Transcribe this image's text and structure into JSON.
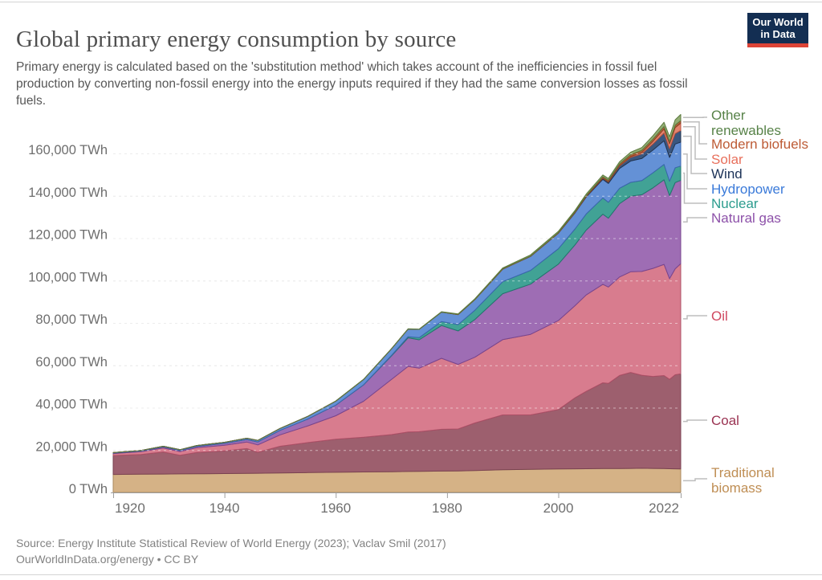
{
  "header": {
    "title": "Global primary energy consumption by source",
    "subtitle": "Primary energy is calculated based on the 'substitution method' which takes account of the inefficiencies in fossil fuel production by converting non-fossil energy into the energy inputs required if they had the same conversion losses as fossil fuels.",
    "logo": {
      "line1": "Our World",
      "line2": "in Data",
      "bg_color": "#132e52",
      "bar_color": "#dc4437"
    }
  },
  "footer": {
    "source": "Source: Energy Institute Statistical Review of World Energy (2023); Vaclav Smil (2017)",
    "license": "OurWorldInData.org/energy • CC BY"
  },
  "chart_data": {
    "type": "area",
    "stacked": true,
    "title": "Global primary energy consumption by source",
    "unit": "TWh",
    "xlim": [
      1920,
      2022
    ],
    "ylim": [
      0,
      181000
    ],
    "grid": "dashed-horizontal",
    "legend_position": "right",
    "x_ticks": [
      1920,
      1940,
      1960,
      1980,
      2000,
      2022
    ],
    "y_ticks": [
      0,
      20000,
      40000,
      60000,
      80000,
      100000,
      120000,
      140000,
      160000
    ],
    "y_tick_suffix": " TWh",
    "x": [
      1920,
      1925,
      1929,
      1932,
      1935,
      1940,
      1944,
      1946,
      1950,
      1955,
      1960,
      1965,
      1970,
      1973,
      1975,
      1979,
      1982,
      1985,
      1990,
      1995,
      2000,
      2003,
      2005,
      2008,
      2009,
      2011,
      2013,
      2015,
      2017,
      2019,
      2020,
      2021,
      2022
    ],
    "series": [
      {
        "id": "biomass",
        "name": "Traditional biomass",
        "label_lines": [
          "Traditional",
          "biomass"
        ],
        "color_fill": "#d5b286",
        "color_border": "#ab8a5e",
        "color_label": "#bf8e54",
        "values": [
          8500,
          8600,
          8700,
          8750,
          8800,
          8900,
          9000,
          9050,
          9200,
          9350,
          9500,
          9650,
          9800,
          9900,
          9950,
          10100,
          10150,
          10300,
          10700,
          10900,
          11100,
          11150,
          11200,
          11250,
          11250,
          11300,
          11350,
          11400,
          11350,
          11250,
          11200,
          11150,
          11100
        ]
      },
      {
        "id": "coal",
        "name": "Coal",
        "label_lines": [
          "Coal"
        ],
        "color_fill": "#9d5f6e",
        "color_border": "#7a4251",
        "color_label": "#9a3352",
        "values": [
          8900,
          9300,
          10400,
          8800,
          10100,
          10700,
          11700,
          9900,
          12600,
          14200,
          15600,
          16400,
          17500,
          18600,
          18700,
          19700,
          19800,
          22500,
          25900,
          25700,
          28000,
          33500,
          36500,
          40500,
          40200,
          43900,
          45300,
          43900,
          43400,
          43900,
          42200,
          44400,
          44850
        ]
      },
      {
        "id": "oil",
        "name": "Oil",
        "label_lines": [
          "Oil"
        ],
        "color_fill": "#d87c8e",
        "color_border": "#ad4f66",
        "color_label": "#d0475f",
        "values": [
          950,
          1350,
          1900,
          1750,
          2200,
          2700,
          3100,
          3500,
          5400,
          7900,
          11100,
          17000,
          26000,
          31000,
          30000,
          33500,
          30500,
          31000,
          35500,
          38000,
          42000,
          43500,
          45500,
          46500,
          45500,
          46500,
          47500,
          49000,
          51000,
          52500,
          47500,
          50000,
          52000
        ]
      },
      {
        "id": "gas",
        "name": "Natural gas",
        "label_lines": [
          "Natural gas"
        ],
        "color_fill": "#9e6db4",
        "color_border": "#77458f",
        "color_label": "#8d51a9",
        "values": [
          250,
          330,
          480,
          500,
          600,
          850,
          1200,
          1400,
          2100,
          3200,
          5000,
          7700,
          11100,
          13500,
          13400,
          15500,
          15800,
          17800,
          21700,
          23700,
          26600,
          28700,
          30600,
          33100,
          32500,
          34600,
          35700,
          36200,
          38000,
          39900,
          39200,
          40700,
          39400
        ]
      },
      {
        "id": "nuclear",
        "name": "Nuclear",
        "label_lines": [
          "Nuclear"
        ],
        "color_fill": "#41a295",
        "color_border": "#20776c",
        "color_label": "#2c9c8e",
        "values": [
          0,
          0,
          0,
          0,
          0,
          0,
          0,
          0,
          0,
          0,
          20,
          70,
          250,
          500,
          1000,
          1900,
          3000,
          4400,
          5700,
          6500,
          7300,
          7500,
          7600,
          7700,
          7500,
          7300,
          6500,
          6700,
          7100,
          7300,
          6800,
          7000,
          6700
        ]
      },
      {
        "id": "hydro",
        "name": "Hydropower",
        "label_lines": [
          "Hydropower"
        ],
        "color_fill": "#6491d6",
        "color_border": "#3a66ad",
        "color_label": "#3a7ad9",
        "values": [
          190,
          250,
          310,
          370,
          430,
          500,
          600,
          700,
          900,
          1300,
          1900,
          2500,
          3100,
          3600,
          3900,
          4400,
          4700,
          5000,
          5900,
          6600,
          7300,
          7600,
          8000,
          8700,
          8900,
          9300,
          10100,
          10400,
          10700,
          11100,
          11200,
          11200,
          11300
        ]
      },
      {
        "id": "wind",
        "name": "Wind",
        "label_lines": [
          "Wind"
        ],
        "color_fill": "#3a577f",
        "color_border": "#22344f",
        "color_label": "#1d3358",
        "values": [
          0,
          0,
          0,
          0,
          0,
          0,
          0,
          0,
          0,
          0,
          0,
          0,
          0,
          0,
          0,
          0,
          0,
          0,
          10,
          20,
          80,
          170,
          280,
          580,
          700,
          1200,
          1700,
          2200,
          2900,
          3700,
          4200,
          4900,
          5500
        ]
      },
      {
        "id": "solar",
        "name": "Solar",
        "label_lines": [
          "Solar"
        ],
        "color_fill": "#e5846f",
        "color_border": "#bb5440",
        "color_label": "#e8705c",
        "values": [
          0,
          0,
          0,
          0,
          0,
          0,
          0,
          0,
          0,
          0,
          0,
          0,
          0,
          0,
          0,
          0,
          0,
          0,
          0,
          0,
          3,
          6,
          12,
          35,
          55,
          170,
          380,
          670,
          1200,
          1850,
          2250,
          2850,
          3450
        ]
      },
      {
        "id": "biofuels",
        "name": "Modern biofuels",
        "label_lines": [
          "Modern biofuels"
        ],
        "color_fill": "#b26039",
        "color_border": "#8a4423",
        "color_label": "#bd5b35",
        "values": [
          0,
          0,
          0,
          0,
          0,
          0,
          0,
          0,
          0,
          0,
          0,
          0,
          0,
          0,
          0,
          0,
          60,
          90,
          130,
          180,
          250,
          330,
          430,
          680,
          730,
          840,
          950,
          1000,
          1050,
          1200,
          1130,
          1170,
          1200
        ]
      },
      {
        "id": "other",
        "name": "Other renewables",
        "label_lines": [
          "Other",
          "renewables"
        ],
        "color_fill": "#93ad74",
        "color_border": "#5c7a3e",
        "color_label": "#578248",
        "values": [
          0,
          0,
          0,
          0,
          0,
          0,
          0,
          0,
          0,
          0,
          30,
          50,
          90,
          120,
          140,
          190,
          230,
          280,
          400,
          500,
          600,
          650,
          700,
          800,
          850,
          950,
          1100,
          1300,
          1600,
          2000,
          2200,
          2500,
          2900
        ]
      }
    ]
  }
}
